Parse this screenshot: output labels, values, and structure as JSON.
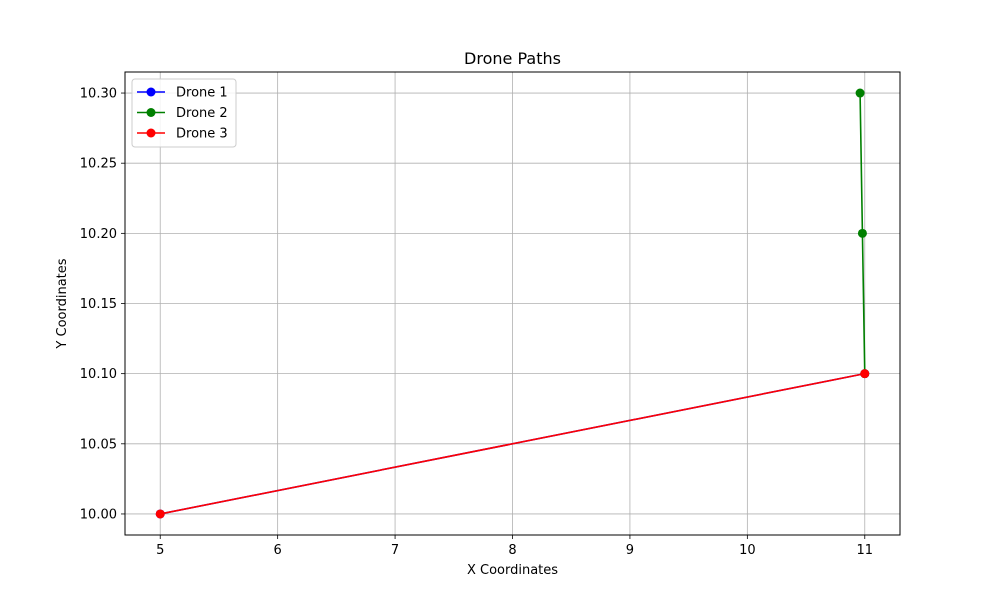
{
  "chart_data": {
    "type": "line",
    "title": "Drone Paths",
    "xlabel": "X Coordinates",
    "ylabel": "Y Coordinates",
    "xlim": [
      4.7,
      11.3
    ],
    "ylim": [
      9.985,
      10.315
    ],
    "xticks": [
      5,
      6,
      7,
      8,
      9,
      10,
      11
    ],
    "xtick_labels": [
      "5",
      "6",
      "7",
      "8",
      "9",
      "10",
      "11"
    ],
    "yticks": [
      10.0,
      10.05,
      10.1,
      10.15,
      10.2,
      10.25,
      10.3
    ],
    "ytick_labels": [
      "10.00",
      "10.05",
      "10.10",
      "10.15",
      "10.20",
      "10.25",
      "10.30"
    ],
    "grid": true,
    "legend_position": "top-left",
    "series": [
      {
        "name": "Drone 1",
        "color": "#0000ff",
        "x": [
          5,
          11
        ],
        "y": [
          10.0,
          10.1
        ]
      },
      {
        "name": "Drone 2",
        "color": "#008000",
        "x": [
          11.0,
          10.98,
          10.96
        ],
        "y": [
          10.1,
          10.2,
          10.3
        ]
      },
      {
        "name": "Drone 3",
        "color": "#ff0000",
        "x": [
          5,
          11
        ],
        "y": [
          10.0,
          10.1
        ]
      }
    ]
  }
}
